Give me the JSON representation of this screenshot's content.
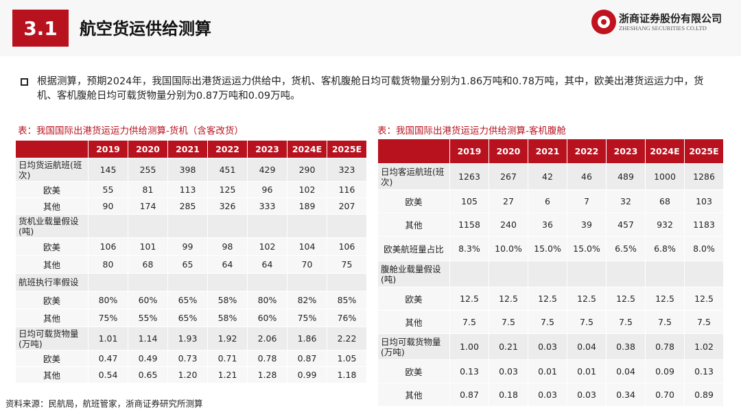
{
  "header": {
    "section_number": "3.1",
    "title": "航空货运供给测算",
    "logo_cn": "浙商证券股份有限公司",
    "logo_en": "ZHESHANG SECURITIES CO.LTD"
  },
  "bullet": "根据测算，预期2024年，我国国际出港货运运力供给中，货机、客机腹舱日均可载货物量分别为1.86万吨和0.78万吨，其中，欧美出港货运运力中，货机、客机腹舱日均可载货物量分别为0.87万吨和0.09万吨。",
  "table1": {
    "caption": "表：我国国际出港货运运力供给测算-货机（含客改货）",
    "years": [
      "2019",
      "2020",
      "2021",
      "2022",
      "2023",
      "2024E",
      "2025E"
    ],
    "rows": [
      {
        "label": "日均货运航班(班次)",
        "values": [
          "145",
          "255",
          "398",
          "451",
          "429",
          "290",
          "323"
        ]
      },
      {
        "label": "欧美",
        "values": [
          "55",
          "81",
          "113",
          "125",
          "96",
          "102",
          "116"
        ]
      },
      {
        "label": "其他",
        "values": [
          "90",
          "174",
          "285",
          "326",
          "333",
          "189",
          "207"
        ]
      },
      {
        "label": "货机业载量假设(吨)",
        "values": [
          "",
          "",
          "",
          "",
          "",
          "",
          ""
        ]
      },
      {
        "label": "欧美",
        "values": [
          "106",
          "101",
          "99",
          "98",
          "102",
          "104",
          "106"
        ]
      },
      {
        "label": "其他",
        "values": [
          "80",
          "68",
          "65",
          "64",
          "64",
          "70",
          "75"
        ]
      },
      {
        "label": "航班执行率假设",
        "values": [
          "",
          "",
          "",
          "",
          "",
          "",
          ""
        ]
      },
      {
        "label": "欧美",
        "values": [
          "80%",
          "60%",
          "65%",
          "58%",
          "80%",
          "82%",
          "85%"
        ]
      },
      {
        "label": "其他",
        "values": [
          "75%",
          "55%",
          "65%",
          "58%",
          "60%",
          "75%",
          "76%"
        ]
      },
      {
        "label": "日均可载货物量(万吨)",
        "values": [
          "1.01",
          "1.14",
          "1.93",
          "1.92",
          "2.06",
          "1.86",
          "2.22"
        ]
      },
      {
        "label": "欧美",
        "values": [
          "0.47",
          "0.49",
          "0.73",
          "0.71",
          "0.78",
          "0.87",
          "1.05"
        ]
      },
      {
        "label": "其他",
        "values": [
          "0.54",
          "0.65",
          "1.20",
          "1.21",
          "1.28",
          "0.99",
          "1.18"
        ]
      }
    ]
  },
  "table2": {
    "caption": "表：我国国际出港货运运力供给测算-客机腹舱",
    "years": [
      "2019",
      "2020",
      "2021",
      "2022",
      "2023",
      "2024E",
      "2025E"
    ],
    "rows": [
      {
        "label": "日均客运航班(班次)",
        "values": [
          "1263",
          "267",
          "42",
          "46",
          "489",
          "1000",
          "1286"
        ]
      },
      {
        "label": "欧美",
        "values": [
          "105",
          "27",
          "6",
          "7",
          "32",
          "68",
          "103"
        ]
      },
      {
        "label": "其他",
        "values": [
          "1158",
          "240",
          "36",
          "39",
          "457",
          "932",
          "1183"
        ]
      },
      {
        "label": "欧美航班量占比",
        "values": [
          "8.3%",
          "10.0%",
          "15.0%",
          "15.0%",
          "6.5%",
          "6.8%",
          "8.0%"
        ]
      },
      {
        "label": "腹舱业载量假设(吨)",
        "values": [
          "",
          "",
          "",
          "",
          "",
          "",
          ""
        ]
      },
      {
        "label": "欧美",
        "values": [
          "12.5",
          "12.5",
          "12.5",
          "12.5",
          "12.5",
          "12.5",
          "12.5"
        ]
      },
      {
        "label": "其他",
        "values": [
          "7.5",
          "7.5",
          "7.5",
          "7.5",
          "7.5",
          "7.5",
          "7.5"
        ]
      },
      {
        "label": "日均可载货物量(万吨)",
        "values": [
          "1.00",
          "0.21",
          "0.03",
          "0.04",
          "0.38",
          "0.78",
          "1.02"
        ]
      },
      {
        "label": "欧美",
        "values": [
          "0.13",
          "0.03",
          "0.01",
          "0.01",
          "0.04",
          "0.09",
          "0.13"
        ]
      },
      {
        "label": "其他",
        "values": [
          "0.87",
          "0.18",
          "0.03",
          "0.03",
          "0.34",
          "0.70",
          "0.89"
        ]
      }
    ]
  },
  "source": "资料来源：民航局，航班管家，浙商证券研究所测算",
  "colors": {
    "accent": "#b8121f",
    "row_light": "#f7f7f7",
    "row_dark": "#ececec"
  }
}
